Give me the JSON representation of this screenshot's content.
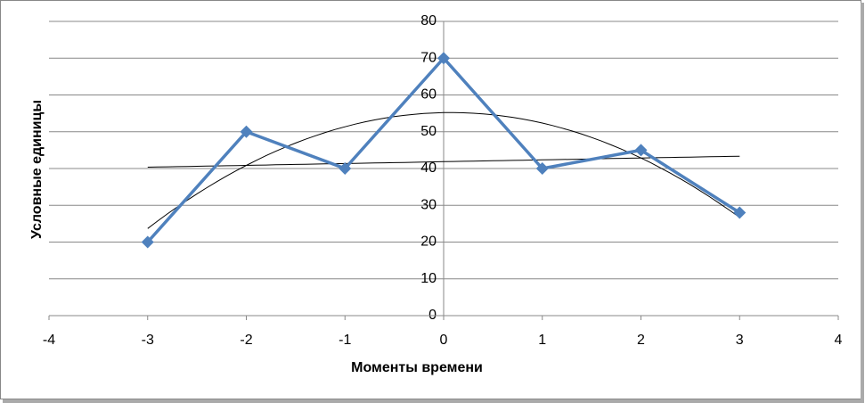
{
  "chart_data": {
    "type": "scatter",
    "xlabel": "Моменты времени",
    "ylabel": "Условные единицы",
    "x": [
      -3,
      -2,
      -1,
      0,
      1,
      2,
      3
    ],
    "series": [
      {
        "color": "#4f81bd",
        "values": [
          20,
          50,
          40,
          70,
          40,
          45,
          28
        ]
      }
    ],
    "trendlines": [
      {
        "kind": "linear",
        "color": "#000000"
      },
      {
        "kind": "polynomial",
        "order": 2,
        "color": "#000000"
      }
    ],
    "xlim": [
      -4,
      4
    ],
    "xticks": [
      -4,
      -3,
      -2,
      -1,
      0,
      1,
      2,
      3,
      4
    ],
    "ylim": [
      0,
      80
    ],
    "yticks": [
      0,
      10,
      20,
      30,
      40,
      50,
      60,
      70,
      80
    ],
    "grid": true
  }
}
